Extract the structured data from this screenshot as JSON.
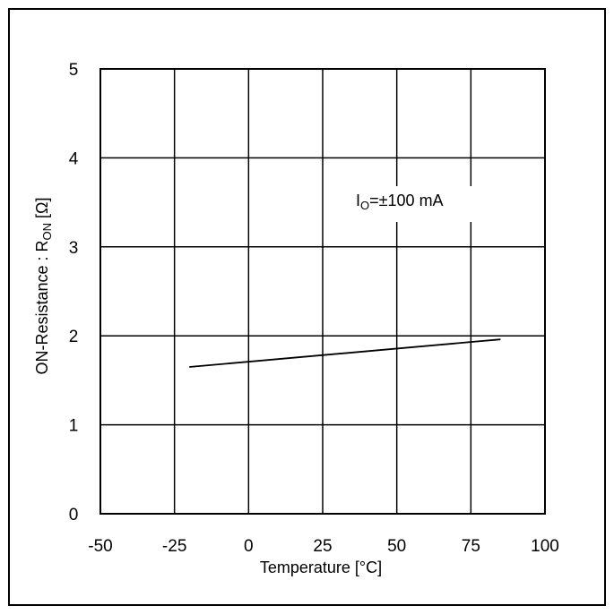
{
  "chart_data": {
    "type": "line",
    "xlabel": "Temperature [°C]",
    "ylabel": {
      "main": "ON-Resistance : R",
      "sub": "ON",
      "unit": " [Ω]"
    },
    "xlim": [
      -50,
      100
    ],
    "ylim": [
      0,
      5
    ],
    "xticks": [
      -50,
      -25,
      0,
      25,
      50,
      75,
      100
    ],
    "yticks": [
      0,
      1,
      2,
      3,
      4,
      5
    ],
    "grid": true,
    "annotation": {
      "main": "I",
      "sub": "O",
      "rest": "=±100 mA"
    },
    "series": [
      {
        "x": [
          -20,
          85
        ],
        "y": [
          1.65,
          1.96
        ]
      }
    ]
  }
}
